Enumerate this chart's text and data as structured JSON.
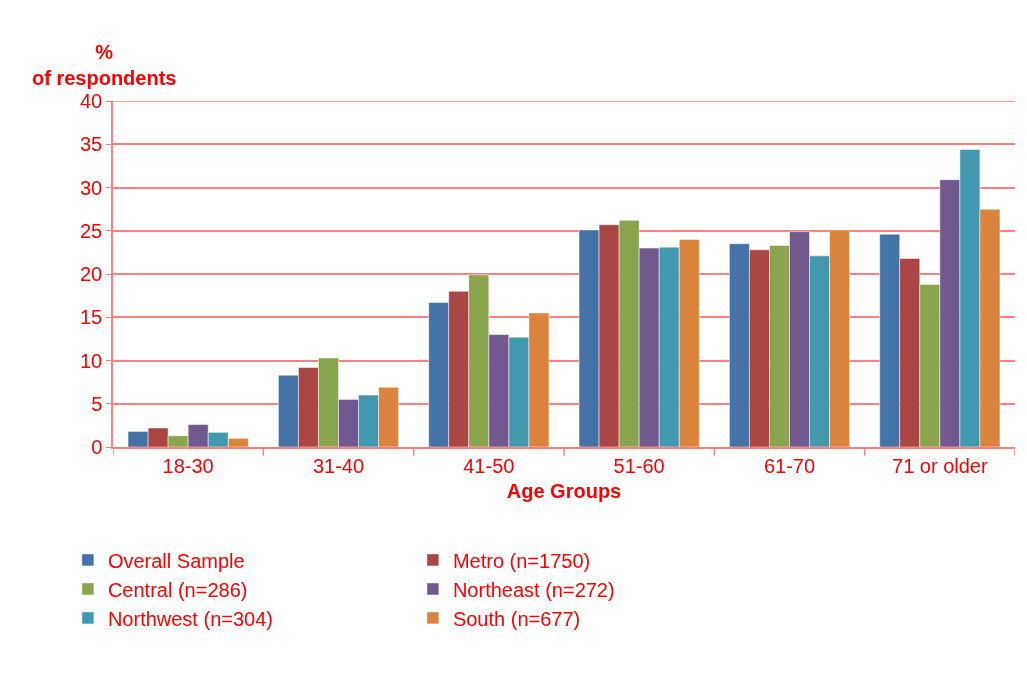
{
  "chart_data": {
    "type": "bar",
    "xlabel": "Age Groups",
    "ylabel": "% of respondents",
    "categories": [
      "18-30",
      "31-40",
      "41-50",
      "51-60",
      "61-70",
      "71 or older"
    ],
    "series": [
      {
        "name": "Overall Sample",
        "color": "#4572a7",
        "values": [
          1.8,
          8.3,
          16.7,
          25.1,
          23.5,
          24.6
        ]
      },
      {
        "name": "Metro (n=1750)",
        "color": "#aa4643",
        "values": [
          2.2,
          9.2,
          18.0,
          25.7,
          22.8,
          21.8
        ]
      },
      {
        "name": "Central (n=286)",
        "color": "#89a54e",
        "values": [
          1.3,
          10.3,
          19.9,
          26.2,
          23.3,
          18.8
        ]
      },
      {
        "name": "Northeast (n=272)",
        "color": "#71588f",
        "values": [
          2.6,
          5.5,
          13.0,
          23.0,
          24.9,
          30.9
        ]
      },
      {
        "name": "Northwest (n=304)",
        "color": "#4198af",
        "values": [
          1.7,
          6.0,
          12.7,
          23.1,
          22.1,
          34.4
        ]
      },
      {
        "name": "South (n=677)",
        "color": "#db843d",
        "values": [
          1.0,
          6.9,
          15.5,
          24.0,
          25.1,
          27.5
        ]
      }
    ],
    "ylim": [
      0,
      40
    ],
    "yticks": [
      0,
      5,
      10,
      15,
      20,
      25,
      30,
      35,
      40
    ],
    "grid": "y",
    "legend": "bottom"
  }
}
